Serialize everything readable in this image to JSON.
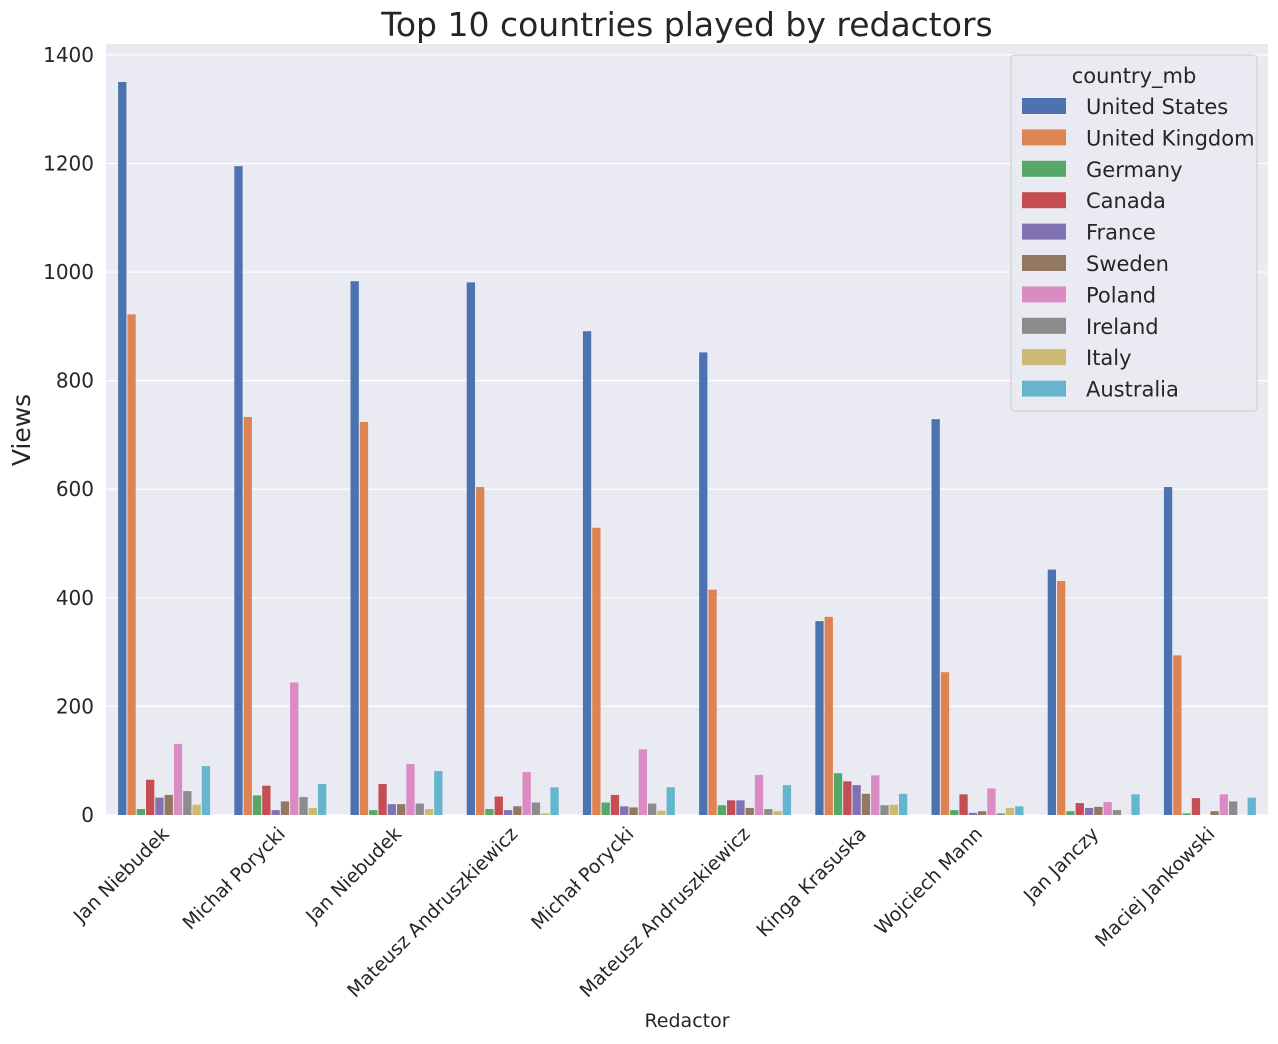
{
  "chart_data": {
    "type": "bar",
    "title": "Top 10 countries played by redactors",
    "xlabel": "Redactor",
    "ylabel": "Views",
    "ylim": [
      0,
      1420
    ],
    "yticks": [
      0,
      200,
      400,
      600,
      800,
      1000,
      1200,
      1400
    ],
    "grid": true,
    "legend_title": "country_mb",
    "legend_position": "top-right",
    "categories": [
      "Jan Niebudek",
      "Michał Porycki",
      "Jan Niebudek",
      "Mateusz Andruszkiewicz",
      "Michał Porycki",
      "Mateusz Andruszkiewicz",
      "Kinga Krasuska",
      "Wojciech Mann",
      "Jan Janczy",
      "Maciej Jankowski"
    ],
    "series": [
      {
        "name": "United States",
        "color": "#4c72b0",
        "values": [
          1350,
          1195,
          983,
          981,
          891,
          852,
          357,
          729,
          452,
          604
        ]
      },
      {
        "name": "United Kingdom",
        "color": "#dd8452",
        "values": [
          922,
          733,
          724,
          604,
          529,
          415,
          365,
          263,
          431,
          294
        ]
      },
      {
        "name": "Germany",
        "color": "#55a868",
        "values": [
          11,
          36,
          9,
          11,
          23,
          18,
          77,
          9,
          7,
          3
        ]
      },
      {
        "name": "Canada",
        "color": "#c44e52",
        "values": [
          65,
          54,
          57,
          34,
          37,
          27,
          62,
          38,
          22,
          31
        ]
      },
      {
        "name": "France",
        "color": "#8172b3",
        "values": [
          32,
          9,
          20,
          9,
          16,
          27,
          55,
          4,
          13,
          0
        ]
      },
      {
        "name": "Sweden",
        "color": "#937860",
        "values": [
          37,
          25,
          20,
          16,
          14,
          13,
          39,
          7,
          15,
          7
        ]
      },
      {
        "name": "Poland",
        "color": "#da8bc3",
        "values": [
          131,
          244,
          94,
          79,
          121,
          74,
          73,
          49,
          24,
          38
        ]
      },
      {
        "name": "Ireland",
        "color": "#8c8c8c",
        "values": [
          44,
          33,
          21,
          23,
          21,
          11,
          18,
          3,
          9,
          25
        ]
      },
      {
        "name": "Italy",
        "color": "#ccb974",
        "values": [
          19,
          13,
          11,
          3,
          8,
          7,
          19,
          13,
          0,
          0
        ]
      },
      {
        "name": "Australia",
        "color": "#64b5cd",
        "values": [
          90,
          57,
          81,
          51,
          51,
          55,
          39,
          16,
          38,
          32
        ]
      }
    ]
  }
}
